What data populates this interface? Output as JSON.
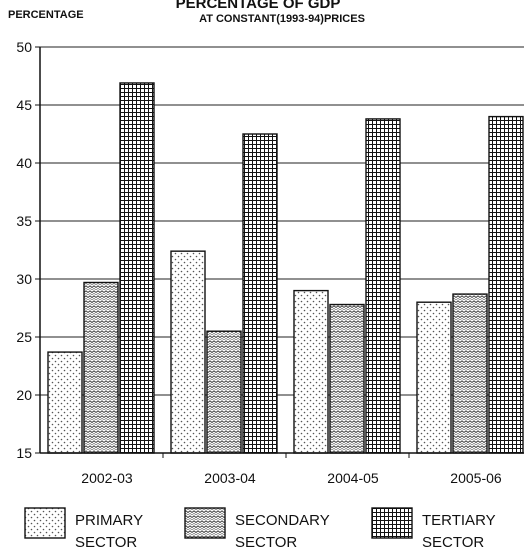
{
  "chart_data": {
    "type": "bar",
    "title": "PERCENTAGE OF GDP",
    "subtitle": "AT CONSTANT(1993-94)PRICES",
    "ylabel": "PERCENTAGE",
    "xlabel": "",
    "ylim": [
      15,
      50
    ],
    "yticks": [
      15,
      20,
      25,
      30,
      35,
      40,
      45,
      50
    ],
    "grid": true,
    "legend_position": "bottom",
    "categories": [
      "2002-03",
      "2003-04",
      "2004-05",
      "2005-06"
    ],
    "series": [
      {
        "name": "PRIMARY SECTOR",
        "legend_lines": [
          "PRIMARY",
          "SECTOR"
        ],
        "pattern": "dots",
        "values": [
          23.7,
          32.4,
          29.0,
          28.0
        ]
      },
      {
        "name": "SECONDARY SECTOR",
        "legend_lines": [
          "SECONDARY",
          "SECTOR"
        ],
        "pattern": "waves",
        "values": [
          29.7,
          25.5,
          27.8,
          28.7
        ]
      },
      {
        "name": "TERTIARY SECTOR",
        "legend_lines": [
          "TERTIARY",
          "SECTOR"
        ],
        "pattern": "grid",
        "values": [
          46.9,
          42.5,
          43.8,
          44.0
        ]
      }
    ]
  }
}
